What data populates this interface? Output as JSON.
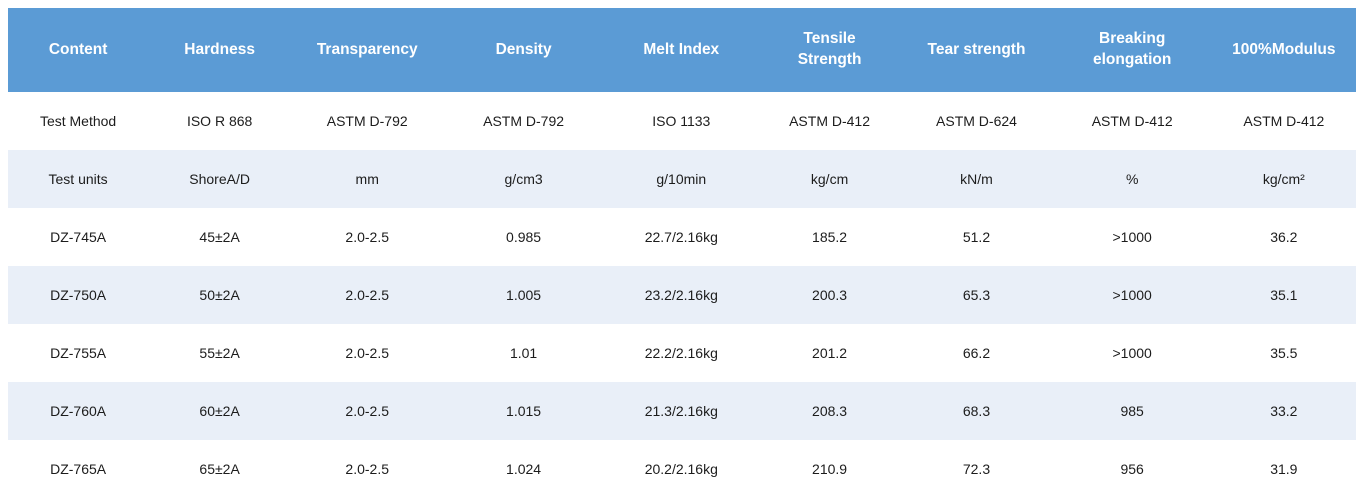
{
  "theme": {
    "header_bg": "#5b9bd5",
    "header_text": "#ffffff",
    "band_row_bg": "#e9eff8",
    "body_text": "#1c1c1c",
    "page_bg": "#ffffff"
  },
  "table": {
    "columns": [
      "Content",
      "Hardness",
      "Transparency",
      "Density",
      "Melt Index",
      "Tensile Strength",
      "Tear strength",
      "Breaking elongation",
      "100%Modulus"
    ],
    "rows": [
      {
        "cells": [
          "Test Method",
          "ISO R 868",
          "ASTM D-792",
          "ASTM D-792",
          "ISO 1133",
          "ASTM D-412",
          "ASTM D-624",
          "ASTM D-412",
          "ASTM D-412"
        ]
      },
      {
        "cells": [
          "Test units",
          "ShoreA/D",
          "mm",
          "g/cm3",
          "g/10min",
          "kg/cm",
          "kN/m",
          "%",
          "kg/cm²"
        ]
      },
      {
        "cells": [
          "DZ-745A",
          "45±2A",
          "2.0-2.5",
          "0.985",
          "22.7/2.16kg",
          "185.2",
          "51.2",
          ">1000",
          "36.2"
        ]
      },
      {
        "cells": [
          "DZ-750A",
          "50±2A",
          "2.0-2.5",
          "1.005",
          "23.2/2.16kg",
          "200.3",
          "65.3",
          ">1000",
          "35.1"
        ]
      },
      {
        "cells": [
          "DZ-755A",
          "55±2A",
          "2.0-2.5",
          "1.01",
          "22.2/2.16kg",
          "201.2",
          "66.2",
          ">1000",
          "35.5"
        ]
      },
      {
        "cells": [
          "DZ-760A",
          "60±2A",
          "2.0-2.5",
          "1.015",
          "21.3/2.16kg",
          "208.3",
          "68.3",
          "985",
          "33.2"
        ]
      },
      {
        "cells": [
          "DZ-765A",
          "65±2A",
          "2.0-2.5",
          "1.024",
          "20.2/2.16kg",
          "210.9",
          "72.3",
          "956",
          "31.9"
        ]
      }
    ]
  }
}
